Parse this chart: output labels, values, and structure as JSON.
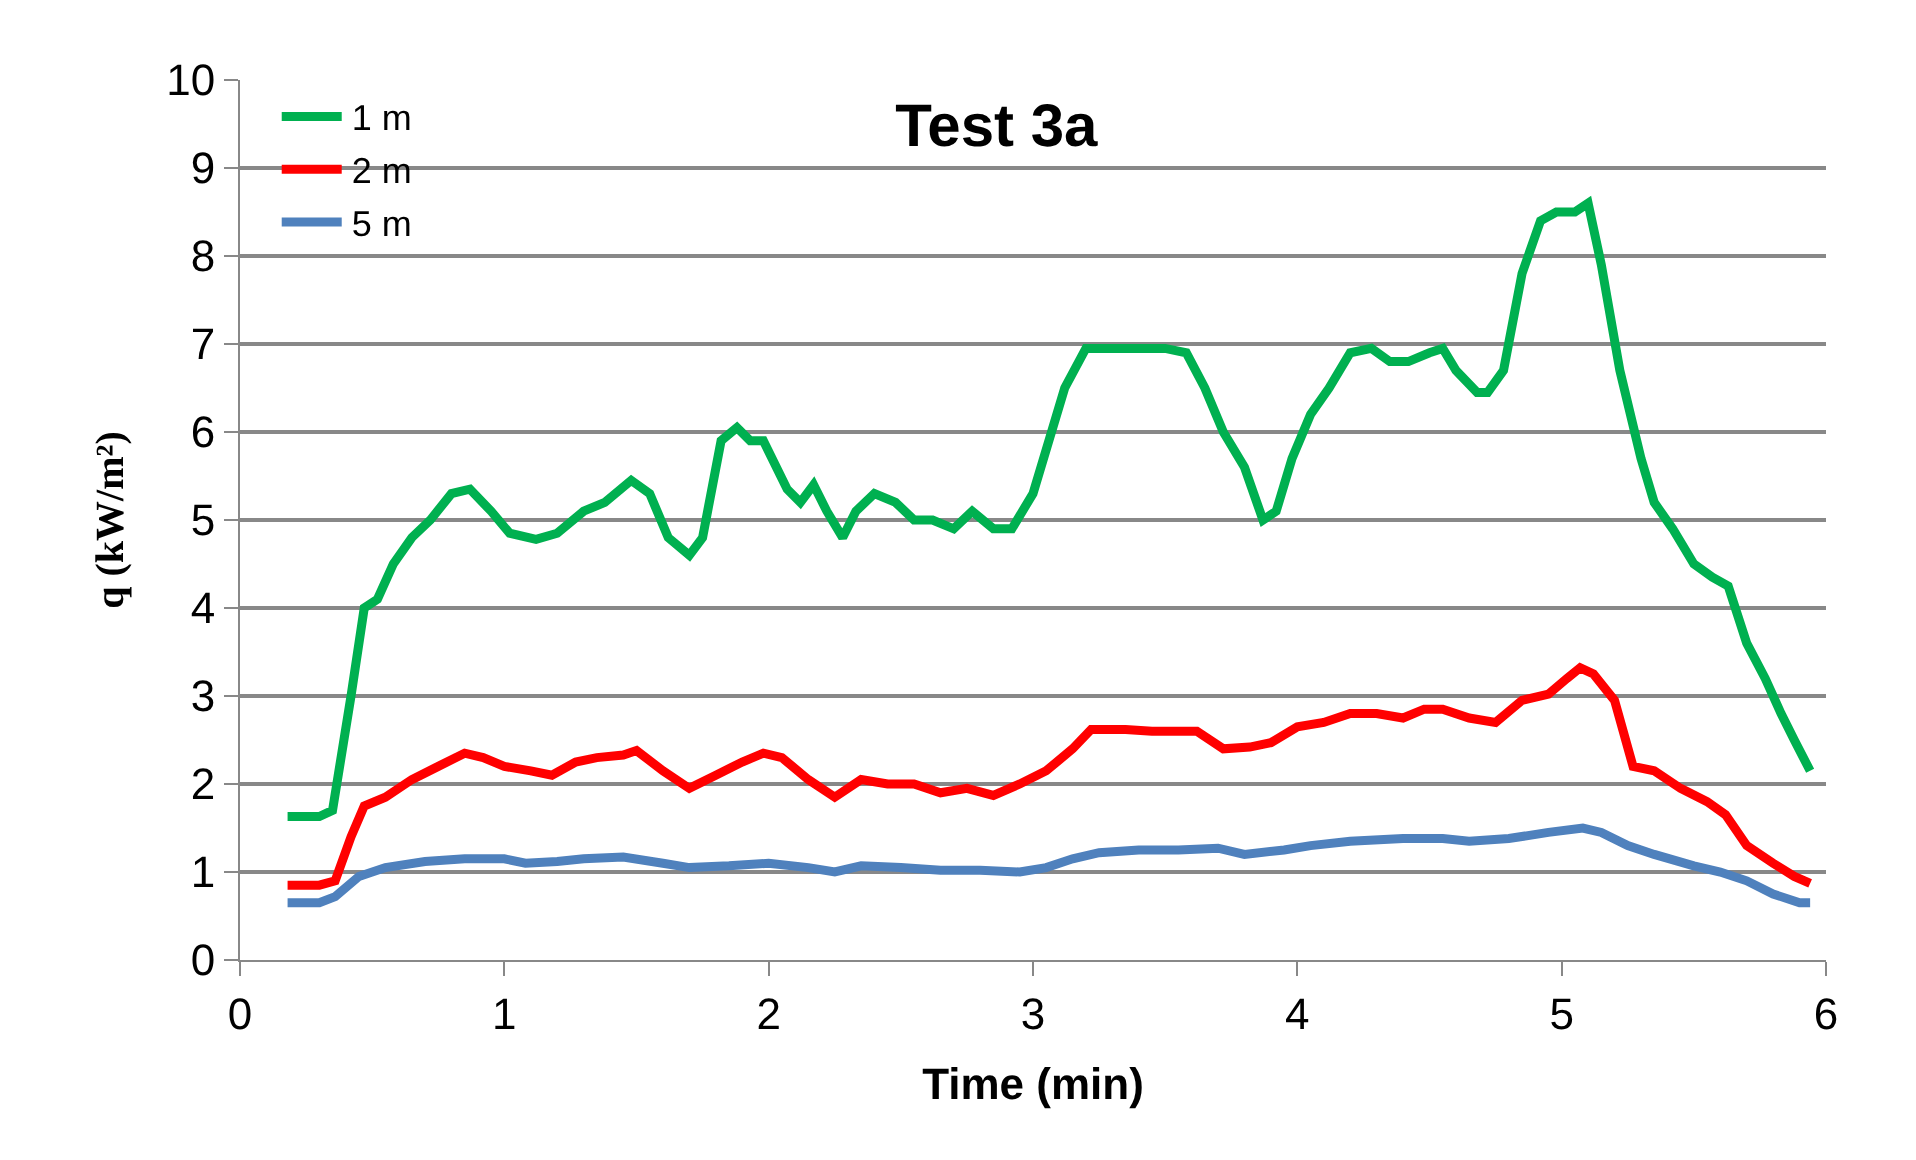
{
  "chart_data": {
    "type": "line",
    "title": "Test 3a",
    "xlabel": "Time (min)",
    "ylabel": "q (kW/m²)",
    "xlim": [
      0,
      6
    ],
    "xticks": [
      0,
      1,
      2,
      3,
      4,
      5,
      6
    ],
    "ylim": [
      0,
      10
    ],
    "yticks": [
      0,
      1,
      2,
      3,
      4,
      5,
      6,
      7,
      8,
      9,
      10
    ],
    "grid": "y",
    "legend": "top left",
    "marker": "none",
    "line_style": "solid",
    "series": [
      {
        "name": "1 m",
        "color": "#00b050",
        "x": [
          0.18,
          0.3,
          0.35,
          0.42,
          0.47,
          0.52,
          0.58,
          0.65,
          0.72,
          0.8,
          0.87,
          0.95,
          1.02,
          1.12,
          1.2,
          1.3,
          1.38,
          1.48,
          1.55,
          1.62,
          1.7,
          1.75,
          1.82,
          1.88,
          1.93,
          1.98,
          2.07,
          2.12,
          2.17,
          2.22,
          2.28,
          2.33,
          2.4,
          2.48,
          2.55,
          2.62,
          2.7,
          2.77,
          2.85,
          2.92,
          3.0,
          3.07,
          3.12,
          3.2,
          3.3,
          3.4,
          3.5,
          3.58,
          3.65,
          3.72,
          3.8,
          3.87,
          3.92,
          3.98,
          4.05,
          4.12,
          4.2,
          4.28,
          4.35,
          4.42,
          4.5,
          4.55,
          4.6,
          4.68,
          4.72,
          4.78,
          4.85,
          4.92,
          4.98,
          5.05,
          5.1,
          5.15,
          5.22,
          5.3,
          5.35,
          5.42,
          5.5,
          5.57,
          5.63,
          5.7,
          5.77,
          5.83,
          5.88,
          5.94
        ],
        "values": [
          1.63,
          1.63,
          1.7,
          3.0,
          4.0,
          4.1,
          4.5,
          4.8,
          5.0,
          5.3,
          5.35,
          5.1,
          4.85,
          4.78,
          4.85,
          5.1,
          5.2,
          5.45,
          5.3,
          4.8,
          4.6,
          4.8,
          5.9,
          6.05,
          5.9,
          5.9,
          5.35,
          5.2,
          5.4,
          5.1,
          4.8,
          5.1,
          5.3,
          5.2,
          5.0,
          5.0,
          4.9,
          5.1,
          4.9,
          4.9,
          5.3,
          6.0,
          6.5,
          6.95,
          6.95,
          6.95,
          6.95,
          6.9,
          6.5,
          6.0,
          5.6,
          5.0,
          5.1,
          5.7,
          6.2,
          6.5,
          6.9,
          6.95,
          6.8,
          6.8,
          6.9,
          6.95,
          6.7,
          6.45,
          6.45,
          6.7,
          7.8,
          8.4,
          8.5,
          8.5,
          8.6,
          7.9,
          6.7,
          5.7,
          5.2,
          4.9,
          4.5,
          4.35,
          4.25,
          3.6,
          3.2,
          2.8,
          2.5,
          2.15
        ]
      },
      {
        "name": "2 m",
        "color": "#ff0000",
        "x": [
          0.18,
          0.3,
          0.36,
          0.42,
          0.47,
          0.55,
          0.65,
          0.75,
          0.85,
          0.92,
          1.0,
          1.1,
          1.18,
          1.27,
          1.35,
          1.45,
          1.5,
          1.6,
          1.7,
          1.8,
          1.9,
          1.98,
          2.05,
          2.15,
          2.25,
          2.35,
          2.45,
          2.55,
          2.65,
          2.75,
          2.85,
          2.95,
          3.05,
          3.15,
          3.22,
          3.35,
          3.45,
          3.55,
          3.62,
          3.72,
          3.82,
          3.9,
          4.0,
          4.1,
          4.2,
          4.3,
          4.4,
          4.48,
          4.55,
          4.65,
          4.75,
          4.85,
          4.95,
          5.02,
          5.07,
          5.12,
          5.2,
          5.27,
          5.35,
          5.45,
          5.55,
          5.62,
          5.7,
          5.8,
          5.88,
          5.94
        ],
        "values": [
          0.85,
          0.85,
          0.9,
          1.4,
          1.75,
          1.85,
          2.05,
          2.2,
          2.35,
          2.3,
          2.2,
          2.15,
          2.1,
          2.25,
          2.3,
          2.33,
          2.38,
          2.15,
          1.95,
          2.1,
          2.25,
          2.35,
          2.3,
          2.05,
          1.85,
          2.05,
          2.0,
          2.0,
          1.9,
          1.95,
          1.87,
          2.0,
          2.15,
          2.4,
          2.62,
          2.62,
          2.6,
          2.6,
          2.6,
          2.4,
          2.42,
          2.47,
          2.65,
          2.7,
          2.8,
          2.8,
          2.75,
          2.85,
          2.85,
          2.75,
          2.7,
          2.95,
          3.02,
          3.2,
          3.32,
          3.25,
          2.95,
          2.2,
          2.15,
          1.95,
          1.8,
          1.65,
          1.3,
          1.1,
          0.95,
          0.87
        ]
      },
      {
        "name": "5 m",
        "color": "#4f81bd",
        "x": [
          0.18,
          0.3,
          0.36,
          0.45,
          0.55,
          0.7,
          0.85,
          1.0,
          1.08,
          1.2,
          1.3,
          1.45,
          1.6,
          1.7,
          1.85,
          2.0,
          2.15,
          2.25,
          2.35,
          2.5,
          2.65,
          2.8,
          2.95,
          3.05,
          3.15,
          3.25,
          3.4,
          3.55,
          3.7,
          3.8,
          3.95,
          4.05,
          4.2,
          4.4,
          4.55,
          4.65,
          4.8,
          4.95,
          5.08,
          5.15,
          5.25,
          5.35,
          5.5,
          5.6,
          5.7,
          5.8,
          5.9,
          5.94
        ],
        "values": [
          0.65,
          0.65,
          0.72,
          0.95,
          1.05,
          1.12,
          1.15,
          1.15,
          1.1,
          1.12,
          1.15,
          1.17,
          1.1,
          1.05,
          1.07,
          1.1,
          1.05,
          1.0,
          1.07,
          1.05,
          1.02,
          1.02,
          1.0,
          1.05,
          1.15,
          1.22,
          1.25,
          1.25,
          1.27,
          1.2,
          1.25,
          1.3,
          1.35,
          1.38,
          1.38,
          1.35,
          1.38,
          1.45,
          1.5,
          1.45,
          1.3,
          1.2,
          1.07,
          1.0,
          0.9,
          0.75,
          0.65,
          0.65
        ]
      }
    ]
  }
}
